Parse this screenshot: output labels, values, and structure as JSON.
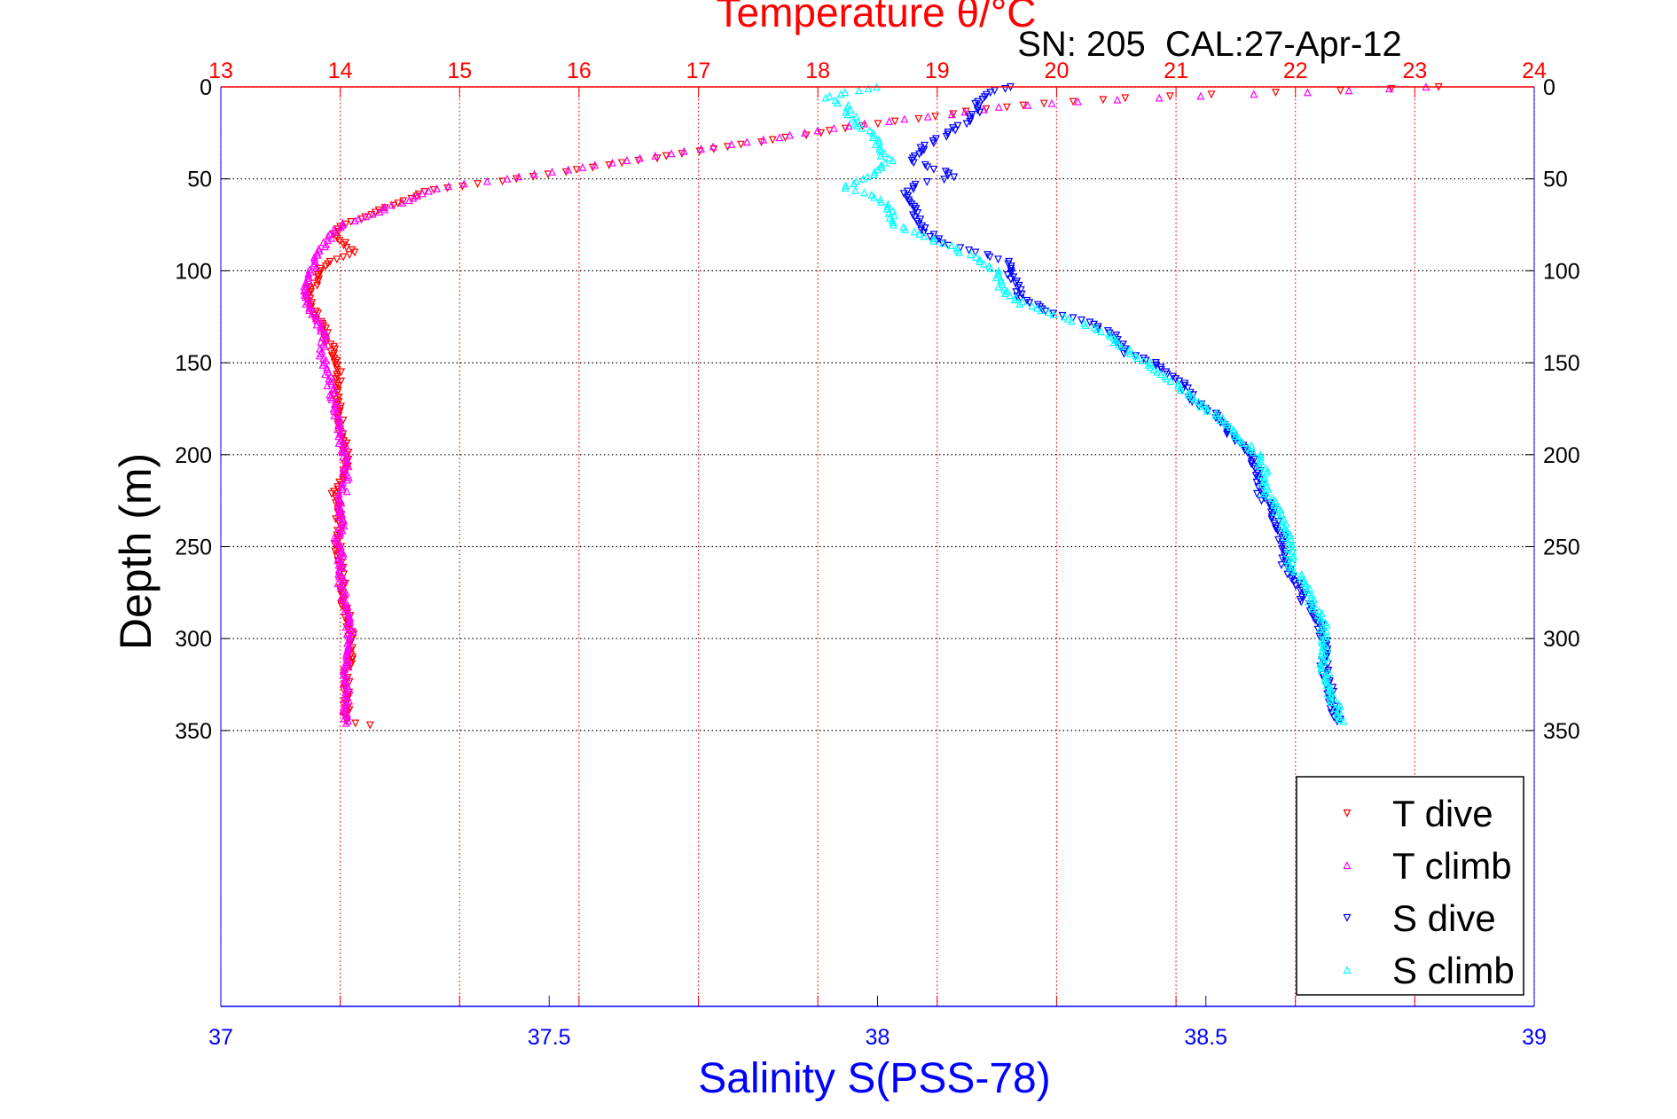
{
  "chart_data": {
    "type": "scatter",
    "title": "Temperature θ/°C",
    "subtitle": "SN: 205  CAL:27-Apr-12",
    "xlabel_top": "Temperature θ/°C",
    "xlabel_bottom": "Salinity S(PSS-78)",
    "ylabel": "Depth (m)",
    "ylim": [
      0,
      500
    ],
    "y_reversed": true,
    "yticks": [
      "0",
      "50",
      "100",
      "150",
      "200",
      "250",
      "300",
      "350"
    ],
    "ytick_values": [
      0,
      50,
      100,
      150,
      200,
      250,
      300,
      350
    ],
    "temp_xlim": [
      13,
      24
    ],
    "temp_ticks": [
      "13",
      "14",
      "15",
      "16",
      "17",
      "18",
      "19",
      "20",
      "21",
      "22",
      "23",
      "24"
    ],
    "sal_xlim": [
      37,
      39
    ],
    "sal_ticks": [
      "37",
      "37.5",
      "38",
      "38.5",
      "39"
    ],
    "sal_tick_values": [
      37,
      37.5,
      38,
      38.5,
      39
    ],
    "grid": true,
    "legend_position": "bottom-right",
    "colors": {
      "t_dive": "#ff0000",
      "t_climb": "#ff00ff",
      "s_dive": "#0000ff",
      "s_climb": "#00ffff",
      "temp_axis": "#ff0000",
      "sal_axis": "#0000ff"
    },
    "series": [
      {
        "name": "T dive",
        "axis": "temperature",
        "marker": "down",
        "color": "#ff0000",
        "points": [
          [
            0,
            23.2
          ],
          [
            2,
            22.4
          ],
          [
            4,
            21.3
          ],
          [
            6,
            20.6
          ],
          [
            9,
            19.9
          ],
          [
            12,
            19.4
          ],
          [
            16,
            19.0
          ],
          [
            20,
            18.5
          ],
          [
            25,
            18.0
          ],
          [
            30,
            17.5
          ],
          [
            35,
            17.0
          ],
          [
            40,
            16.5
          ],
          [
            45,
            16.0
          ],
          [
            50,
            15.5
          ],
          [
            54,
            15.0
          ],
          [
            57,
            14.7
          ],
          [
            62,
            14.55
          ],
          [
            67,
            14.35
          ],
          [
            72,
            14.15
          ],
          [
            76,
            14.0
          ],
          [
            80,
            13.95
          ],
          [
            86,
            14.05
          ],
          [
            90,
            14.1
          ],
          [
            95,
            13.9
          ],
          [
            100,
            13.85
          ],
          [
            108,
            13.78
          ],
          [
            115,
            13.72
          ],
          [
            122,
            13.78
          ],
          [
            130,
            13.85
          ],
          [
            140,
            13.92
          ],
          [
            150,
            13.98
          ],
          [
            160,
            14.0
          ],
          [
            170,
            13.97
          ],
          [
            180,
            14.0
          ],
          [
            190,
            14.02
          ],
          [
            200,
            14.05
          ],
          [
            210,
            14.03
          ],
          [
            220,
            13.95
          ],
          [
            230,
            13.98
          ],
          [
            240,
            14.0
          ],
          [
            250,
            13.98
          ],
          [
            260,
            14.0
          ],
          [
            270,
            14.02
          ],
          [
            280,
            14.03
          ],
          [
            290,
            14.07
          ],
          [
            300,
            14.1
          ],
          [
            310,
            14.08
          ],
          [
            320,
            14.05
          ],
          [
            335,
            14.05
          ],
          [
            345,
            14.05
          ],
          [
            347,
            14.25
          ]
        ]
      },
      {
        "name": "T climb",
        "axis": "temperature",
        "marker": "up",
        "color": "#ff00ff",
        "points": [
          [
            0,
            23.1
          ],
          [
            3,
            22.1
          ],
          [
            5,
            21.2
          ],
          [
            8,
            20.2
          ],
          [
            11,
            19.5
          ],
          [
            15,
            19.1
          ],
          [
            20,
            18.4
          ],
          [
            25,
            17.9
          ],
          [
            30,
            17.4
          ],
          [
            35,
            16.9
          ],
          [
            40,
            16.4
          ],
          [
            45,
            15.9
          ],
          [
            50,
            15.4
          ],
          [
            54,
            14.9
          ],
          [
            58,
            14.7
          ],
          [
            63,
            14.5
          ],
          [
            68,
            14.3
          ],
          [
            74,
            14.05
          ],
          [
            80,
            13.92
          ],
          [
            88,
            13.85
          ],
          [
            96,
            13.78
          ],
          [
            104,
            13.75
          ],
          [
            112,
            13.7
          ],
          [
            118,
            13.72
          ],
          [
            126,
            13.8
          ],
          [
            135,
            13.87
          ],
          [
            145,
            13.85
          ],
          [
            155,
            13.9
          ],
          [
            165,
            13.92
          ],
          [
            175,
            13.95
          ],
          [
            185,
            14.0
          ],
          [
            195,
            14.02
          ],
          [
            205,
            14.05
          ],
          [
            215,
            14.05
          ],
          [
            225,
            14.0
          ],
          [
            235,
            14.02
          ],
          [
            245,
            13.98
          ],
          [
            255,
            14.0
          ],
          [
            265,
            14.0
          ],
          [
            275,
            14.02
          ],
          [
            285,
            14.05
          ],
          [
            295,
            14.08
          ],
          [
            305,
            14.08
          ],
          [
            320,
            14.05
          ],
          [
            335,
            14.05
          ],
          [
            346,
            14.05
          ]
        ]
      },
      {
        "name": "S dive",
        "axis": "salinity",
        "marker": "down",
        "color": "#0000ff",
        "points": [
          [
            0,
            38.2
          ],
          [
            3,
            38.17
          ],
          [
            8,
            38.15
          ],
          [
            15,
            38.15
          ],
          [
            20,
            38.13
          ],
          [
            27,
            38.1
          ],
          [
            33,
            38.07
          ],
          [
            40,
            38.05
          ],
          [
            46,
            38.1
          ],
          [
            49,
            38.12
          ],
          [
            53,
            38.06
          ],
          [
            58,
            38.04
          ],
          [
            65,
            38.06
          ],
          [
            72,
            38.06
          ],
          [
            78,
            38.07
          ],
          [
            85,
            38.1
          ],
          [
            90,
            38.15
          ],
          [
            95,
            38.2
          ],
          [
            100,
            38.2
          ],
          [
            108,
            38.21
          ],
          [
            115,
            38.22
          ],
          [
            122,
            38.26
          ],
          [
            128,
            38.32
          ],
          [
            135,
            38.36
          ],
          [
            145,
            38.38
          ],
          [
            150,
            38.42
          ],
          [
            160,
            38.46
          ],
          [
            170,
            38.48
          ],
          [
            180,
            38.52
          ],
          [
            190,
            38.54
          ],
          [
            200,
            38.57
          ],
          [
            210,
            38.58
          ],
          [
            220,
            38.58
          ],
          [
            230,
            38.6
          ],
          [
            240,
            38.61
          ],
          [
            250,
            38.62
          ],
          [
            260,
            38.62
          ],
          [
            270,
            38.64
          ],
          [
            280,
            38.65
          ],
          [
            290,
            38.67
          ],
          [
            300,
            38.68
          ],
          [
            315,
            38.68
          ],
          [
            330,
            38.69
          ],
          [
            345,
            38.7
          ]
        ]
      },
      {
        "name": "S climb",
        "axis": "salinity",
        "marker": "up",
        "color": "#00ffff",
        "points": [
          [
            0,
            38.0
          ],
          [
            3,
            37.95
          ],
          [
            6,
            37.92
          ],
          [
            10,
            37.95
          ],
          [
            15,
            37.96
          ],
          [
            20,
            37.97
          ],
          [
            25,
            37.99
          ],
          [
            30,
            38.0
          ],
          [
            35,
            38.0
          ],
          [
            40,
            38.02
          ],
          [
            45,
            38.0
          ],
          [
            50,
            37.98
          ],
          [
            55,
            37.95
          ],
          [
            60,
            38.0
          ],
          [
            65,
            38.02
          ],
          [
            70,
            38.02
          ],
          [
            75,
            38.03
          ],
          [
            80,
            38.06
          ],
          [
            85,
            38.1
          ],
          [
            90,
            38.13
          ],
          [
            95,
            38.16
          ],
          [
            100,
            38.18
          ],
          [
            110,
            38.19
          ],
          [
            118,
            38.22
          ],
          [
            125,
            38.28
          ],
          [
            132,
            38.34
          ],
          [
            140,
            38.37
          ],
          [
            150,
            38.41
          ],
          [
            160,
            38.45
          ],
          [
            170,
            38.48
          ],
          [
            180,
            38.52
          ],
          [
            190,
            38.55
          ],
          [
            200,
            38.58
          ],
          [
            210,
            38.59
          ],
          [
            220,
            38.59
          ],
          [
            230,
            38.61
          ],
          [
            240,
            38.62
          ],
          [
            250,
            38.63
          ],
          [
            260,
            38.63
          ],
          [
            270,
            38.65
          ],
          [
            280,
            38.66
          ],
          [
            290,
            38.68
          ],
          [
            300,
            38.68
          ],
          [
            315,
            38.68
          ],
          [
            330,
            38.69
          ],
          [
            345,
            38.71
          ]
        ]
      }
    ]
  }
}
